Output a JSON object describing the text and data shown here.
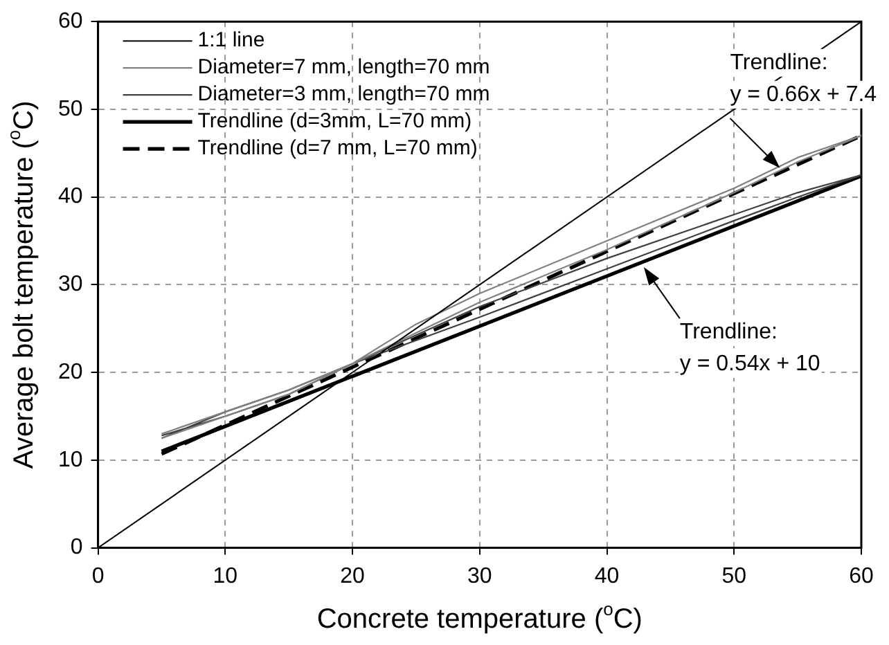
{
  "chart_data": {
    "type": "line",
    "xlabel": "Concrete temperature ($^{o}$C)",
    "ylabel": "Average bolt temperature ($^{o}$C)",
    "xlim": [
      0,
      60
    ],
    "xticks": [
      0,
      10,
      20,
      30,
      40,
      50,
      60
    ],
    "ylim": [
      0,
      60
    ],
    "yticks": [
      0,
      10,
      20,
      30,
      40,
      50,
      60
    ],
    "grid": true,
    "legend": "top left",
    "marker": "none",
    "series": [
      {
        "name": "1:1 line",
        "color": "#000000",
        "x": [
          0,
          60
        ],
        "values": [
          0,
          60
        ]
      },
      {
        "name": "Diameter=7 mm, length=70 mm",
        "color": "#808080",
        "x": [
          5,
          10,
          15,
          20,
          25,
          30,
          40,
          50,
          55,
          60,
          55,
          50,
          40,
          30,
          25,
          20,
          15,
          10,
          5
        ],
        "values": [
          13,
          15.5,
          18,
          21,
          25.5,
          29,
          35,
          41,
          44.5,
          47,
          44,
          40.5,
          34,
          28,
          24.5,
          21,
          17.5,
          15,
          12.5
        ]
      },
      {
        "name": "Diameter=3 mm, length=70 mm",
        "color": "#404040",
        "x": [
          5,
          10,
          15,
          20,
          30,
          40,
          50,
          55,
          60,
          55,
          50,
          40,
          30,
          20,
          15,
          10,
          5
        ],
        "values": [
          12.5,
          15.5,
          18,
          21,
          27.5,
          33,
          38,
          40.5,
          42.5,
          40,
          37.3,
          31.8,
          26.3,
          21,
          17.5,
          15,
          12.8
        ]
      },
      {
        "name": "Trendline (d=3mm, L=70 mm)",
        "color": "#000000",
        "x": [
          5,
          60
        ],
        "values": [
          11,
          42.4
        ]
      },
      {
        "name": "Trendline (d=7 mm, L=70 mm)",
        "color": "#000000",
        "line_style": "dashed",
        "x": [
          5,
          60
        ],
        "values": [
          10.7,
          47
        ]
      }
    ],
    "annotations": [
      {
        "text": "Trendline:\ny = 0.66x + 7.4",
        "x": 53.6,
        "y": 43.3
      },
      {
        "text": "Trendline:\ny = 0.54x + 10",
        "x": 42.9,
        "y": 32
      }
    ]
  }
}
